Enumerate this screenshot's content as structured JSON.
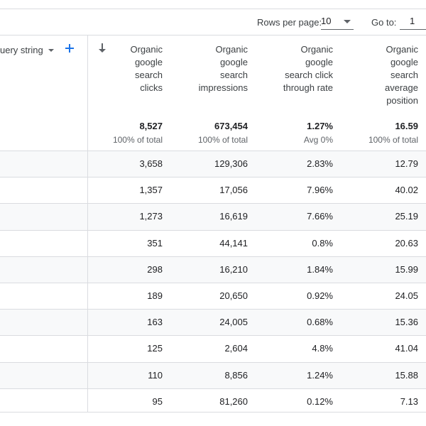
{
  "pager": {
    "rows_per_page_label": "Rows per page:",
    "rows_per_page_value": "10",
    "goto_label": "Go to:",
    "goto_value": "1"
  },
  "dimension": {
    "header": "uery string"
  },
  "columns": [
    {
      "label": "Organic\ngoogle\nsearch\nclicks",
      "total": "8,527",
      "total_sub": "100% of total"
    },
    {
      "label": "Organic\ngoogle\nsearch\nimpressions",
      "total": "673,454",
      "total_sub": "100% of total"
    },
    {
      "label": "Organic\ngoogle\nsearch click\nthrough rate",
      "total": "1.27%",
      "total_sub": "Avg 0%"
    },
    {
      "label": "Organic\ngoogle\nsearch\naverage\nposition",
      "total": "16.59",
      "total_sub": "100% of total"
    }
  ],
  "rows": [
    [
      "3,658",
      "129,306",
      "2.83%",
      "12.79"
    ],
    [
      "1,357",
      "17,056",
      "7.96%",
      "40.02"
    ],
    [
      "1,273",
      "16,619",
      "7.66%",
      "25.19"
    ],
    [
      "351",
      "44,141",
      "0.8%",
      "20.63"
    ],
    [
      "298",
      "16,210",
      "1.84%",
      "15.99"
    ],
    [
      "189",
      "20,650",
      "0.92%",
      "24.05"
    ],
    [
      "163",
      "24,005",
      "0.68%",
      "15.36"
    ],
    [
      "125",
      "2,604",
      "4.8%",
      "41.04"
    ],
    [
      "110",
      "8,856",
      "1.24%",
      "15.88"
    ],
    [
      "95",
      "81,260",
      "0.12%",
      "7.13"
    ]
  ],
  "icons": {
    "sort": "arrow-down-icon",
    "add": "plus-icon",
    "dropdown": "chevron-down-icon"
  },
  "colors": {
    "accent": "#1a73e8",
    "row_shade": "#f8f9fa",
    "border": "#dadce0"
  }
}
